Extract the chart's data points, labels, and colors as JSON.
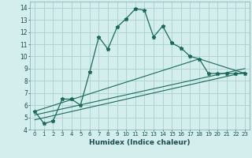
{
  "xlabel": "Humidex (Indice chaleur)",
  "background_color": "#d4eeee",
  "grid_color": "#aed4d4",
  "line_color": "#1a6a5a",
  "xlim": [
    -0.5,
    23.5
  ],
  "ylim": [
    4,
    14.5
  ],
  "yticks": [
    4,
    5,
    6,
    7,
    8,
    9,
    10,
    11,
    12,
    13,
    14
  ],
  "xticks": [
    0,
    1,
    2,
    3,
    4,
    5,
    6,
    7,
    8,
    9,
    10,
    11,
    12,
    13,
    14,
    15,
    16,
    17,
    18,
    19,
    20,
    21,
    22,
    23
  ],
  "line1_x": [
    0,
    1,
    2,
    3,
    4,
    5,
    6,
    7,
    8,
    9,
    10,
    11,
    12,
    13,
    14,
    15,
    16,
    17,
    18,
    19,
    20,
    21,
    22,
    23
  ],
  "line1_y": [
    5.5,
    4.5,
    4.7,
    6.5,
    6.5,
    6.0,
    8.7,
    11.6,
    10.6,
    12.4,
    13.1,
    13.9,
    13.8,
    11.6,
    12.5,
    11.1,
    10.7,
    10.0,
    9.8,
    8.6,
    8.6,
    8.6,
    8.6,
    8.6
  ],
  "line2_x": [
    0,
    23
  ],
  "line2_y": [
    4.8,
    8.7
  ],
  "line3_x": [
    0,
    23
  ],
  "line3_y": [
    5.2,
    9.0
  ],
  "line4_x": [
    0,
    18,
    23
  ],
  "line4_y": [
    5.5,
    9.8,
    8.6
  ]
}
